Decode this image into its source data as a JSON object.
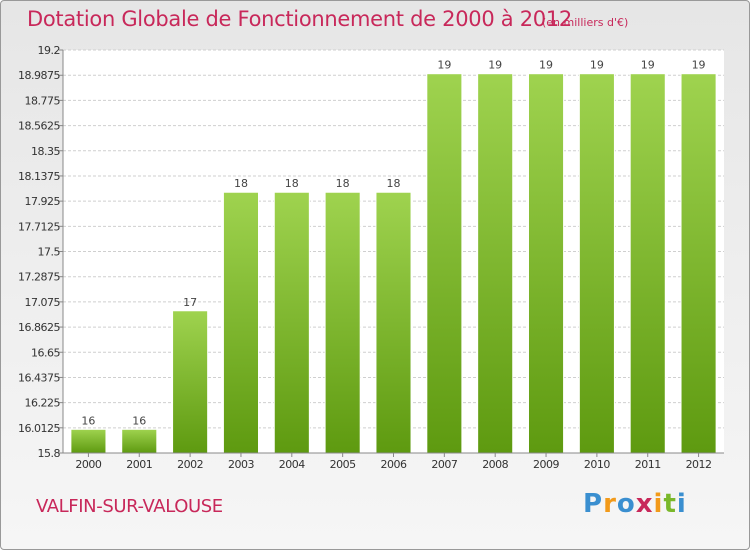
{
  "title": "Dotation Globale de Fonctionnement de 2000 à 2012",
  "subtitle": "(en milliers d'€)",
  "commune": "VALFIN-SUR-VALOUSE",
  "logo": {
    "letters": [
      "P",
      "r",
      "o",
      "x",
      "i",
      "t",
      "i"
    ],
    "colors": [
      "#3a8fd0",
      "#f29a1a",
      "#3a8fd0",
      "#c8285a",
      "#f29a1a",
      "#7ab82a",
      "#3a8fd0"
    ]
  },
  "colors": {
    "bar_top": "#9fd34f",
    "bar_bottom": "#5e9a10",
    "grid": "#cfcfcf",
    "title": "#c8285a"
  },
  "chart_data": {
    "type": "bar",
    "categories": [
      "2000",
      "2001",
      "2002",
      "2003",
      "2004",
      "2005",
      "2006",
      "2007",
      "2008",
      "2009",
      "2010",
      "2011",
      "2012"
    ],
    "values": [
      16,
      16,
      17,
      18,
      18,
      18,
      18,
      19,
      19,
      19,
      19,
      19,
      19
    ],
    "bar_values": [
      16.0,
      16.0,
      17.0,
      18.0,
      18.0,
      18.0,
      18.0,
      19.0,
      19.0,
      19.0,
      19.0,
      19.0,
      19.0
    ],
    "value_labels": [
      "16",
      "16",
      "17",
      "18",
      "18",
      "18",
      "18",
      "19",
      "19",
      "19",
      "19",
      "19",
      "19"
    ],
    "ylim": [
      15.8,
      19.2
    ],
    "yticks": [
      "15.8",
      "16.0125",
      "16.225",
      "16.4375",
      "16.65",
      "16.8625",
      "17.075",
      "17.2875",
      "17.5",
      "17.7125",
      "17.925",
      "18.1375",
      "18.35",
      "18.5625",
      "18.775",
      "18.9875",
      "19.2"
    ],
    "grid": true
  }
}
